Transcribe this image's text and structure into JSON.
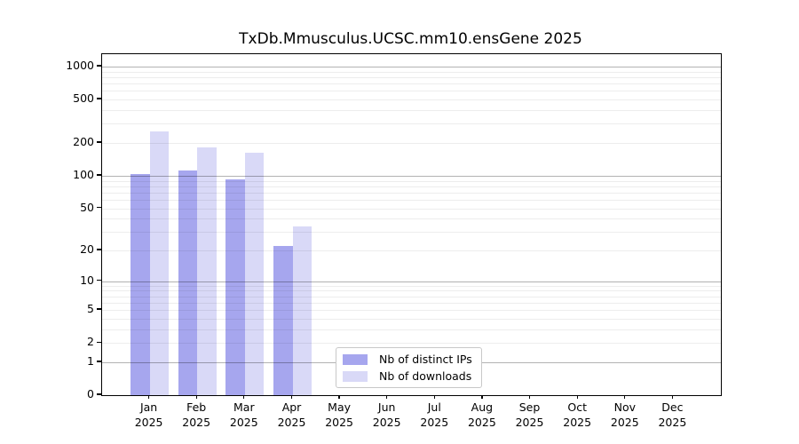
{
  "chart_data": {
    "type": "bar",
    "title": "TxDb.Mmusculus.UCSC.mm10.ensGene 2025",
    "year": "2025",
    "months": [
      "Jan",
      "Feb",
      "Mar",
      "Apr",
      "May",
      "Jun",
      "Jul",
      "Aug",
      "Sep",
      "Oct",
      "Nov",
      "Dec"
    ],
    "categories": [
      "Jan 2025",
      "Feb 2025",
      "Mar 2025",
      "Apr 2025",
      "May 2025",
      "Jun 2025",
      "Jul 2025",
      "Aug 2025",
      "Sep 2025",
      "Oct 2025",
      "Nov 2025",
      "Dec 2025"
    ],
    "series": [
      {
        "name": "Nb of distinct IPs",
        "color": "#a6a6ee",
        "values": [
          104,
          112,
          93,
          22,
          0,
          0,
          0,
          0,
          0,
          0,
          0,
          0
        ]
      },
      {
        "name": "Nb of downloads",
        "color": "#d9d9f7",
        "values": [
          256,
          182,
          163,
          34,
          0,
          0,
          0,
          0,
          0,
          0,
          0,
          0
        ]
      }
    ],
    "yscale": "log10(1+y)",
    "yticks": [
      0,
      1,
      2,
      5,
      10,
      20,
      50,
      100,
      200,
      500,
      1000
    ],
    "ylim": [
      0,
      1300
    ],
    "grid": true,
    "legend_position": "lower center",
    "axis_color": "#000000",
    "background_color": "#ffffff"
  }
}
